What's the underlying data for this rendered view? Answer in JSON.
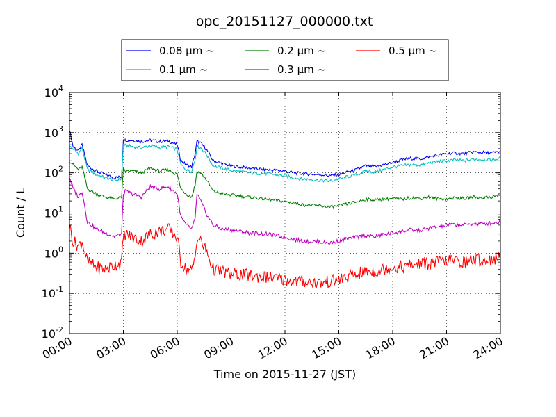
{
  "chart_data": {
    "type": "line",
    "title": "opc_20151127_000000.txt",
    "xlabel": "Time on 2015-11-27 (JST)",
    "ylabel": "Count / L",
    "x_unit": "hours",
    "xlim": [
      0,
      24
    ],
    "ylim": [
      0.01,
      10000
    ],
    "yscale": "log",
    "grid": true,
    "legend_position": "top-center",
    "x_ticks": [
      {
        "value": 0,
        "label": "00:00"
      },
      {
        "value": 3,
        "label": "03:00"
      },
      {
        "value": 6,
        "label": "06:00"
      },
      {
        "value": 9,
        "label": "09:00"
      },
      {
        "value": 12,
        "label": "12:00"
      },
      {
        "value": 15,
        "label": "15:00"
      },
      {
        "value": 18,
        "label": "18:00"
      },
      {
        "value": 21,
        "label": "21:00"
      },
      {
        "value": 24,
        "label": "24:00"
      }
    ],
    "y_ticks": [
      {
        "value": 0.01,
        "base": "10",
        "exp": "-2"
      },
      {
        "value": 0.1,
        "base": "10",
        "exp": "-1"
      },
      {
        "value": 1,
        "base": "10",
        "exp": "0"
      },
      {
        "value": 10,
        "base": "10",
        "exp": "1"
      },
      {
        "value": 100,
        "base": "10",
        "exp": "2"
      },
      {
        "value": 1000,
        "base": "10",
        "exp": "3"
      },
      {
        "value": 10000,
        "base": "10",
        "exp": "4"
      }
    ],
    "series": [
      {
        "name": "0.08 μm ~",
        "color": "#0000ff",
        "x": [
          0,
          0.2,
          0.5,
          0.7,
          1,
          1.5,
          2,
          2.5,
          2.9,
          3,
          3.1,
          3.5,
          4,
          4.5,
          5,
          5.5,
          6,
          6.2,
          6.5,
          6.8,
          7,
          7.1,
          7.3,
          7.6,
          8,
          8.5,
          9,
          10,
          11,
          12,
          12.5,
          13,
          14,
          14.5,
          15,
          15.5,
          16,
          16.5,
          17,
          17.5,
          18,
          18.5,
          19,
          19.5,
          20,
          20.5,
          21,
          21.5,
          22,
          22.5,
          23,
          23.5,
          24
        ],
        "y": [
          1200,
          450,
          350,
          500,
          150,
          110,
          90,
          75,
          80,
          700,
          650,
          650,
          600,
          650,
          600,
          620,
          500,
          200,
          160,
          140,
          300,
          600,
          550,
          400,
          200,
          170,
          150,
          130,
          120,
          110,
          100,
          95,
          90,
          85,
          90,
          105,
          120,
          150,
          140,
          160,
          180,
          210,
          230,
          220,
          250,
          270,
          300,
          310,
          300,
          330,
          320,
          310,
          340
        ]
      },
      {
        "name": "0.1 μm ~",
        "color": "#00bfbf",
        "x": [
          0,
          0.2,
          0.5,
          0.7,
          1,
          1.5,
          2,
          2.5,
          2.9,
          3,
          3.1,
          3.5,
          4,
          4.5,
          5,
          5.5,
          6,
          6.2,
          6.5,
          6.8,
          7,
          7.1,
          7.3,
          7.6,
          8,
          8.5,
          9,
          10,
          11,
          12,
          12.5,
          13,
          14,
          14.5,
          15,
          15.5,
          16,
          16.5,
          17,
          17.5,
          18,
          18.5,
          19,
          19.5,
          20,
          20.5,
          21,
          21.5,
          22,
          22.5,
          23,
          23.5,
          24
        ],
        "y": [
          450,
          400,
          300,
          420,
          120,
          90,
          75,
          65,
          70,
          500,
          480,
          450,
          420,
          480,
          420,
          450,
          380,
          160,
          120,
          110,
          220,
          450,
          420,
          300,
          150,
          130,
          115,
          100,
          95,
          85,
          75,
          70,
          65,
          62,
          70,
          80,
          90,
          110,
          105,
          120,
          140,
          150,
          160,
          155,
          175,
          190,
          200,
          210,
          200,
          220,
          215,
          210,
          230
        ]
      },
      {
        "name": "0.2 μm ~",
        "color": "#008000",
        "x": [
          0,
          0.2,
          0.5,
          0.7,
          1,
          1.5,
          2,
          2.5,
          2.9,
          3,
          3.1,
          3.5,
          4,
          4.5,
          5,
          5.5,
          6,
          6.2,
          6.5,
          6.8,
          7,
          7.1,
          7.3,
          7.6,
          8,
          8.5,
          9,
          10,
          11,
          12,
          12.5,
          13,
          14,
          14.5,
          15,
          15.5,
          16,
          16.5,
          17,
          17.5,
          18,
          18.5,
          19,
          19.5,
          20,
          20.5,
          21,
          21.5,
          22,
          22.5,
          23,
          23.5,
          24
        ],
        "y": [
          200,
          160,
          120,
          140,
          40,
          30,
          25,
          22,
          25,
          120,
          110,
          110,
          100,
          130,
          110,
          120,
          90,
          40,
          30,
          25,
          50,
          110,
          100,
          70,
          35,
          30,
          28,
          25,
          22,
          19,
          18,
          16,
          15,
          14,
          15,
          17,
          19,
          22,
          21,
          22,
          23,
          22,
          24,
          23,
          25,
          23,
          22,
          24,
          23,
          25,
          24,
          25,
          28
        ]
      },
      {
        "name": "0.3 μm ~",
        "color": "#bf00bf",
        "x": [
          0,
          0.2,
          0.5,
          0.7,
          1,
          1.5,
          2,
          2.5,
          2.9,
          3,
          3.1,
          3.5,
          4,
          4.5,
          5,
          5.5,
          6,
          6.2,
          6.5,
          6.8,
          7,
          7.1,
          7.3,
          7.6,
          8,
          8.5,
          9,
          10,
          11,
          12,
          12.5,
          13,
          14,
          14.5,
          15,
          15.5,
          16,
          16.5,
          17,
          17.5,
          18,
          18.5,
          19,
          19.5,
          20,
          20.5,
          21,
          21.5,
          22,
          22.5,
          23,
          23.5,
          24
        ],
        "y": [
          80,
          40,
          25,
          35,
          6,
          4,
          3.2,
          2.6,
          3,
          30,
          35,
          30,
          25,
          45,
          40,
          45,
          30,
          8,
          5,
          4,
          7,
          30,
          20,
          10,
          5,
          4,
          3.8,
          3.2,
          3,
          2.5,
          2.2,
          2,
          1.9,
          1.8,
          2,
          2.3,
          2.5,
          2.8,
          2.6,
          2.9,
          3.2,
          3.5,
          3.8,
          3.6,
          4.2,
          4.5,
          5,
          5.2,
          5,
          5.5,
          5.3,
          5.6,
          6
        ]
      },
      {
        "name": "0.5 μm ~",
        "color": "#ff0000",
        "x": [
          0,
          0.2,
          0.5,
          0.7,
          1,
          1.5,
          2,
          2.5,
          2.9,
          3,
          3.1,
          3.5,
          4,
          4.5,
          5,
          5.5,
          6,
          6.2,
          6.5,
          6.8,
          7,
          7.1,
          7.3,
          7.6,
          8,
          8.5,
          9,
          10,
          11,
          12,
          12.5,
          13,
          14,
          14.5,
          15,
          15.5,
          16,
          16.5,
          17,
          17.5,
          18,
          18.5,
          19,
          19.5,
          20,
          20.5,
          21,
          21.5,
          22,
          22.5,
          23,
          23.5,
          24
        ],
        "y": [
          5,
          2,
          1.5,
          2,
          0.6,
          0.45,
          0.4,
          0.5,
          0.6,
          2.5,
          3,
          2.5,
          2,
          3,
          3.5,
          4,
          2.5,
          0.6,
          0.4,
          0.35,
          0.8,
          2.5,
          2,
          1.2,
          0.4,
          0.35,
          0.3,
          0.28,
          0.25,
          0.22,
          0.2,
          0.2,
          0.18,
          0.2,
          0.22,
          0.25,
          0.3,
          0.35,
          0.35,
          0.4,
          0.45,
          0.45,
          0.5,
          0.55,
          0.55,
          0.6,
          0.65,
          0.65,
          0.6,
          0.7,
          0.65,
          0.7,
          0.75
        ]
      }
    ]
  }
}
